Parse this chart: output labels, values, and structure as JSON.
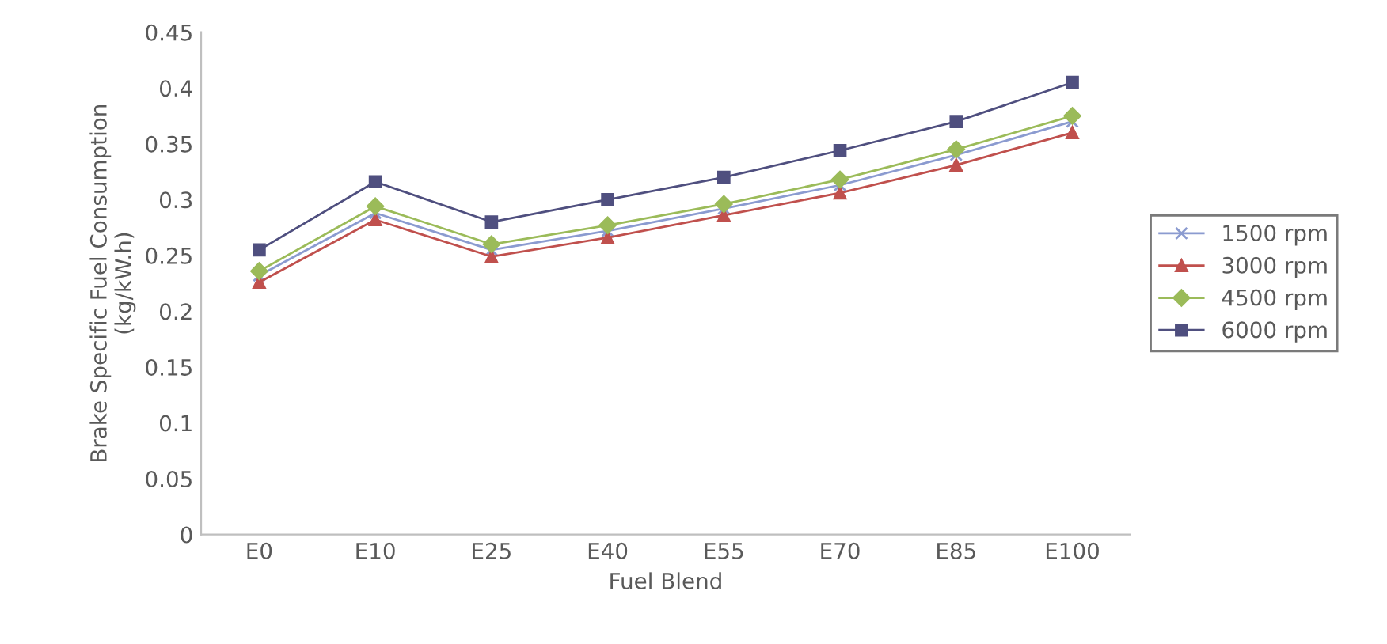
{
  "chart_data": {
    "type": "line",
    "xlabel": "Fuel Blend",
    "ylabel": "Brake Specific Fuel Consumption\n(kg/kW.h)",
    "categories": [
      "E0",
      "E10",
      "E25",
      "E40",
      "E55",
      "E70",
      "E85",
      "E100"
    ],
    "series": [
      {
        "name": "1500 rpm",
        "color": "#8b9bd0",
        "marker": "cross",
        "values": [
          0.232,
          0.288,
          0.255,
          0.272,
          0.292,
          0.313,
          0.34,
          0.37
        ]
      },
      {
        "name": "3000 rpm",
        "color": "#c0504d",
        "marker": "triangle",
        "values": [
          0.226,
          0.282,
          0.249,
          0.266,
          0.286,
          0.306,
          0.331,
          0.36
        ]
      },
      {
        "name": "4500 rpm",
        "color": "#9bbb59",
        "marker": "diamond",
        "values": [
          0.236,
          0.294,
          0.26,
          0.277,
          0.296,
          0.318,
          0.345,
          0.375
        ]
      },
      {
        "name": "6000 rpm",
        "color": "#4f4f7f",
        "marker": "square",
        "values": [
          0.255,
          0.316,
          0.28,
          0.3,
          0.32,
          0.344,
          0.37,
          0.405
        ]
      }
    ],
    "ylim": [
      0,
      0.45
    ],
    "yticks": [
      {
        "value": 0,
        "label": "0"
      },
      0.05,
      0.1,
      0.15,
      0.2,
      0.25,
      0.3,
      0.35,
      0.4,
      0.45
    ],
    "grid": false,
    "legend": "right",
    "line_style": "solid"
  }
}
